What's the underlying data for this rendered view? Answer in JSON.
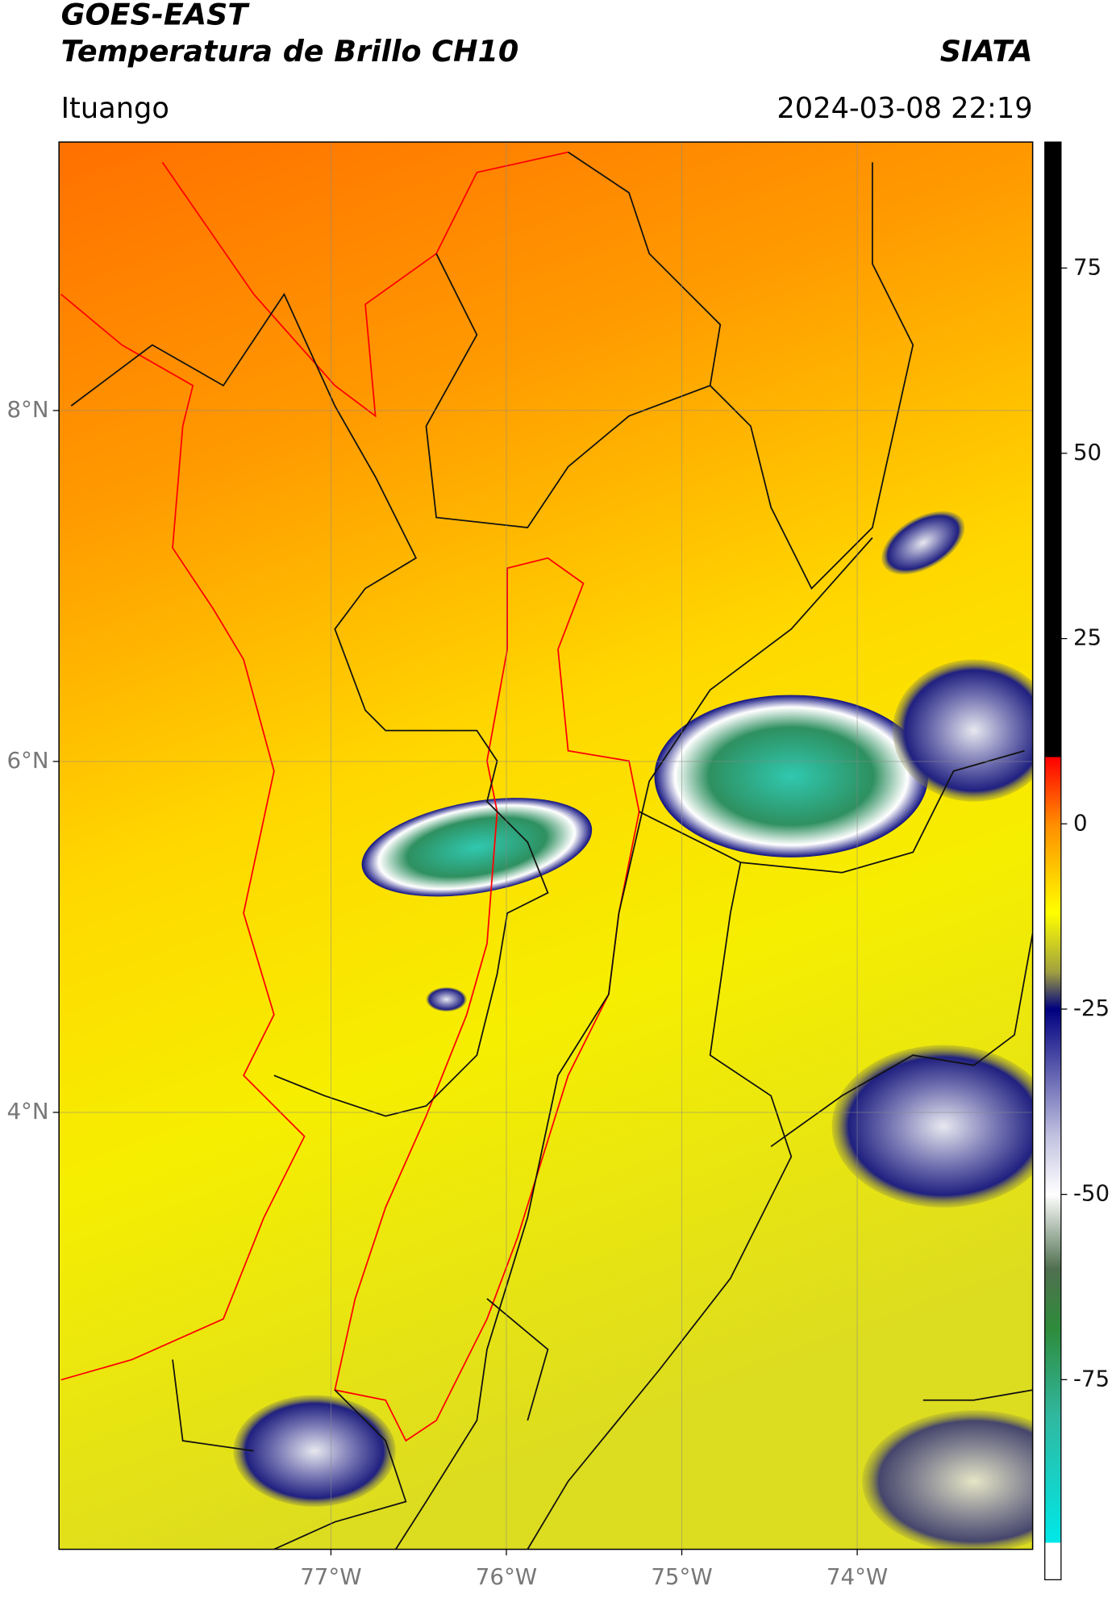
{
  "header": {
    "title": "GOES-EAST",
    "subtitle": "Temperatura de Brillo CH10",
    "source": "SIATA",
    "location": "Ituango",
    "datetime": "2024-03-08 22:19"
  },
  "map": {
    "xlim": [
      -78.55,
      -73.0
    ],
    "ylim": [
      1.51,
      9.53
    ],
    "xticks": [
      {
        "value": -77,
        "label": "77°W"
      },
      {
        "value": -76,
        "label": "76°W"
      },
      {
        "value": -75,
        "label": "75°W"
      },
      {
        "value": -74,
        "label": "74°W"
      }
    ],
    "yticks": [
      {
        "value": 8,
        "label": "8°N"
      },
      {
        "value": 6,
        "label": "6°N"
      },
      {
        "value": 4,
        "label": "4°N"
      }
    ],
    "grid": true
  },
  "colorbar": {
    "clim": [
      -102,
      92
    ],
    "ticks": [
      75,
      50,
      25,
      0,
      -25,
      -50,
      -75
    ],
    "colormap": [
      [
        92,
        "#000000"
      ],
      [
        9,
        "#000000"
      ],
      [
        9,
        "#ff0000"
      ],
      [
        0,
        "#ff8c00"
      ],
      [
        -12,
        "#ffff00"
      ],
      [
        -20,
        "#a0a040"
      ],
      [
        -25,
        "#000080"
      ],
      [
        -42,
        "#c0c0e0"
      ],
      [
        -50,
        "#ffffff"
      ],
      [
        -60,
        "#507050"
      ],
      [
        -68,
        "#2e8b3a"
      ],
      [
        -80,
        "#30b8a0"
      ],
      [
        -97,
        "#00e8e8"
      ],
      [
        -97,
        "#ffffff"
      ],
      [
        -102,
        "#ffffff"
      ]
    ]
  }
}
